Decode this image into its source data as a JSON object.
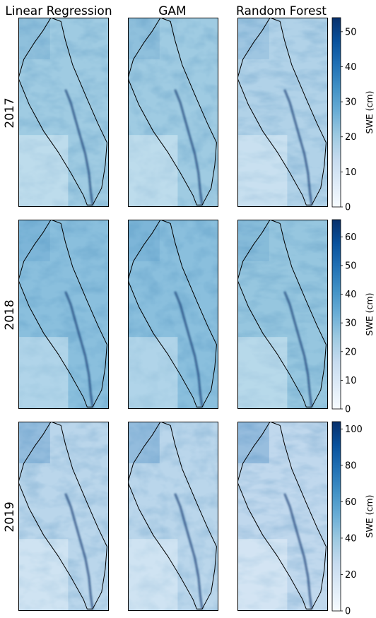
{
  "figure": {
    "columns": [
      "Linear Regression",
      "GAM",
      "Random Forest"
    ],
    "rows": [
      "2017",
      "2018",
      "2019"
    ]
  },
  "chart_data": [
    {
      "type": "heatmap",
      "year": "2017",
      "models": [
        "Linear Regression",
        "GAM",
        "Random Forest"
      ],
      "colorbar": {
        "label": "SWE (cm)",
        "ticks": [
          0,
          10,
          20,
          30,
          40,
          50
        ],
        "range": [
          0,
          54
        ]
      },
      "typical_swe": {
        "Linear Regression": 20,
        "GAM": 20,
        "Random Forest": 17
      },
      "colormap": [
        "#f7fbff",
        "#deebf7",
        "#c6dbef",
        "#9ecae1",
        "#6baed6",
        "#4292c6",
        "#2171b5",
        "#08519c",
        "#08306b"
      ]
    },
    {
      "type": "heatmap",
      "year": "2018",
      "models": [
        "Linear Regression",
        "GAM",
        "Random Forest"
      ],
      "colorbar": {
        "label": "SWE (cm)",
        "ticks": [
          0,
          10,
          20,
          30,
          40,
          50,
          60
        ],
        "range": [
          0,
          66
        ]
      },
      "typical_swe": {
        "Linear Regression": 28,
        "GAM": 28,
        "Random Forest": 26
      },
      "colormap": [
        "#f7fbff",
        "#deebf7",
        "#c6dbef",
        "#9ecae1",
        "#6baed6",
        "#4292c6",
        "#2171b5",
        "#08519c",
        "#08306b"
      ]
    },
    {
      "type": "heatmap",
      "year": "2019",
      "models": [
        "Linear Regression",
        "GAM",
        "Random Forest"
      ],
      "colorbar": {
        "label": "SWE (cm)",
        "ticks": [
          0,
          20,
          40,
          60,
          80,
          100
        ],
        "range": [
          0,
          104
        ]
      },
      "typical_swe": {
        "Linear Regression": 30,
        "GAM": 30,
        "Random Forest": 28
      },
      "colormap": [
        "#f7fbff",
        "#deebf7",
        "#c6dbef",
        "#9ecae1",
        "#6baed6",
        "#4292c6",
        "#2171b5",
        "#08519c",
        "#08306b"
      ]
    }
  ]
}
